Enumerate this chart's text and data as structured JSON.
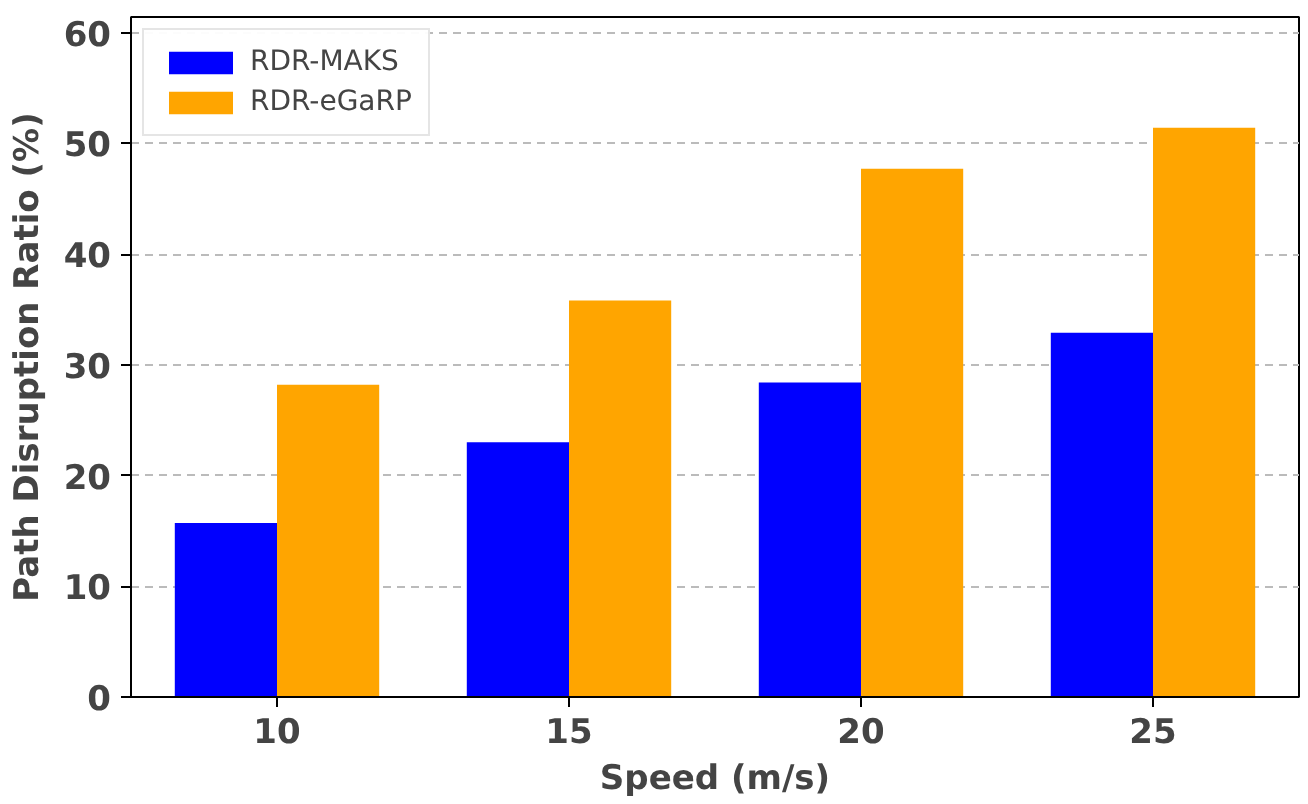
{
  "chart_data": {
    "type": "bar",
    "xlabel": "Speed (m/s)",
    "ylabel": "Path Disruption Ratio (%)",
    "categories": [
      "10",
      "15",
      "20",
      "25"
    ],
    "series": [
      {
        "name": "RDR-MAKS",
        "color": "#0000ff",
        "values": [
          15.7,
          23.0,
          28.4,
          32.9
        ]
      },
      {
        "name": "RDR-eGaRP",
        "color": "#ffa500",
        "values": [
          28.2,
          35.8,
          47.7,
          51.4
        ]
      }
    ],
    "ylim": [
      0,
      61.4
    ],
    "yticks": [
      0,
      10,
      20,
      30,
      40,
      50,
      60
    ],
    "grid": "y",
    "legend": "top left"
  }
}
